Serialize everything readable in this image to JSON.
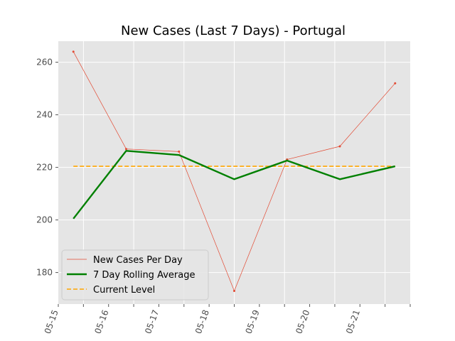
{
  "chart_data": {
    "type": "line",
    "title": "New Cases (Last 7 Days) - Portugal",
    "xlabel": "",
    "ylabel": "",
    "x_tick_labels": [
      "05-15",
      "05-16",
      "05-17",
      "05-18",
      "05-19",
      "05-20",
      "05-21"
    ],
    "x_points": [
      "05-15",
      "05-16",
      "05-17",
      "05-18",
      "05-19",
      "05-20",
      "05-21"
    ],
    "ylim": [
      168,
      268
    ],
    "y_ticks": [
      180,
      200,
      220,
      240,
      260
    ],
    "grid": true,
    "legend_position": "lower-left",
    "series": [
      {
        "name": "New Cases Per Day",
        "style": "thin-line-with-dots",
        "color": "#E24A33",
        "values": [
          264,
          227,
          226,
          173,
          223,
          228,
          252
        ]
      },
      {
        "name": "7 Day Rolling Average",
        "style": "thick-line",
        "color": "#008000",
        "values": [
          200.5,
          226.3,
          224.7,
          215.5,
          222.6,
          215.5,
          220.4
        ]
      },
      {
        "name": "Current Level",
        "style": "dashed-line",
        "color": "#FFA500",
        "values": [
          220.4,
          220.4,
          220.4,
          220.4,
          220.4,
          220.4,
          220.4
        ]
      }
    ]
  }
}
